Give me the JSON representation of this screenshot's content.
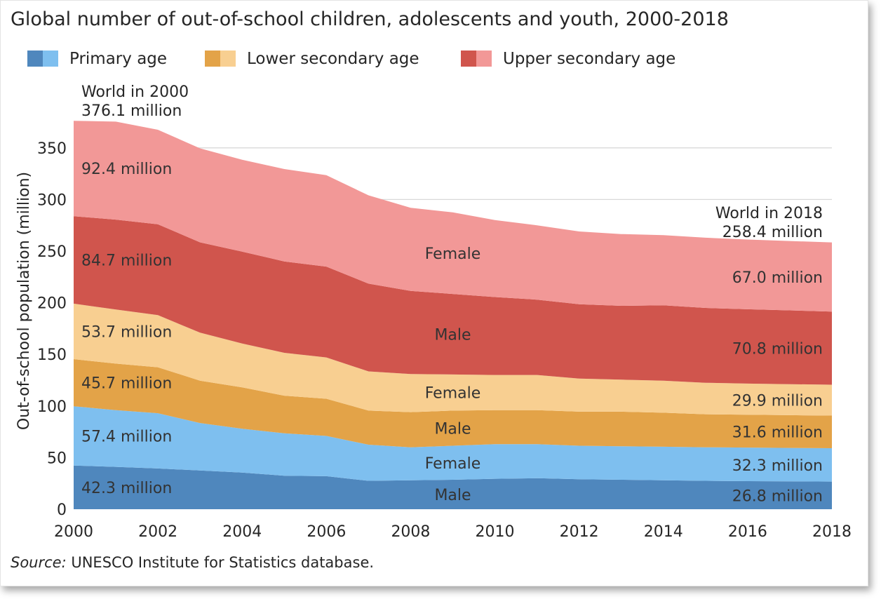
{
  "chart_data": {
    "type": "area",
    "title": "Global number of out-of-school children, adolescents and youth, 2000-2018",
    "ylabel": "Out-of-school population (million)",
    "xlabel": "",
    "x": [
      2000,
      2001,
      2002,
      2003,
      2004,
      2005,
      2006,
      2007,
      2008,
      2009,
      2010,
      2011,
      2012,
      2013,
      2014,
      2015,
      2016,
      2017,
      2018
    ],
    "ylim": [
      0,
      376
    ],
    "xlim": [
      2000,
      2018
    ],
    "y_ticks": [
      "0",
      "50",
      "100",
      "150",
      "200",
      "250",
      "300",
      "350"
    ],
    "x_ticks": [
      "2000",
      "2002",
      "2004",
      "2006",
      "2008",
      "2010",
      "2012",
      "2014",
      "2016",
      "2018"
    ],
    "grid": true,
    "stacked": true,
    "legend": [
      {
        "label": "Primary age",
        "colors": [
          "#4f87bd",
          "#7ebfef"
        ]
      },
      {
        "label": "Lower secondary age",
        "colors": [
          "#e3a348",
          "#f8cf91"
        ]
      },
      {
        "label": "Upper secondary age",
        "colors": [
          "#d0554d",
          "#f29897"
        ]
      }
    ],
    "series": [
      {
        "color": "#4f87bd",
        "label_2000": "42.3 million",
        "label_mid": "Male",
        "label_2018": "26.8 million",
        "values": [
          42.3,
          41,
          39.5,
          37.5,
          35.5,
          32.5,
          32,
          27.5,
          28,
          28.5,
          29.5,
          30,
          29,
          28.5,
          28,
          27.5,
          27.2,
          27,
          26.8
        ]
      },
      {
        "color": "#7ebfef",
        "label_2000": "57.4 million",
        "label_mid": "Female",
        "label_2018": "32.3 million",
        "values": [
          57.4,
          55,
          53.5,
          46,
          42.5,
          41,
          39,
          35,
          32,
          33,
          33.5,
          33,
          32.5,
          32.5,
          32.5,
          32.5,
          32.5,
          32.4,
          32.3
        ]
      },
      {
        "color": "#e3a348",
        "label_2000": "45.7 million",
        "label_mid": "Male",
        "label_2018": "31.6 million",
        "values": [
          45.7,
          45,
          44.5,
          41,
          40,
          36.5,
          36,
          33,
          34,
          34,
          33,
          33,
          33,
          33.5,
          33,
          32,
          31.8,
          31.7,
          31.6
        ]
      },
      {
        "color": "#f8cf91",
        "label_2000": "53.7 million",
        "label_mid": "Female",
        "label_2018": "29.9 million",
        "values": [
          53.7,
          52.5,
          50.5,
          46.5,
          42.5,
          41.5,
          40,
          38,
          37,
          35,
          34,
          34,
          32,
          31,
          31,
          30.5,
          30.2,
          30,
          29.9
        ]
      },
      {
        "color": "#d0554d",
        "label_2000": "84.7 million",
        "label_mid": "Male",
        "label_2018": "70.8 million",
        "values": [
          84.7,
          87,
          88,
          87.5,
          89,
          88.5,
          88,
          85,
          80.5,
          78,
          75.5,
          73,
          72,
          71.5,
          73,
          72.5,
          72,
          71.5,
          70.8
        ]
      },
      {
        "color": "#f29897",
        "label_2000": "92.4 million",
        "label_mid": "Female",
        "label_2018": "67.0 million",
        "values": [
          92.4,
          94.9,
          91.5,
          91,
          89,
          89.5,
          88.5,
          85.5,
          80.5,
          79,
          74.5,
          72,
          70.5,
          69.5,
          68,
          68,
          67.5,
          67.2,
          67.0
        ]
      }
    ],
    "annotations": {
      "start_line1": "World in 2000",
      "start_line2": "376.1 million",
      "end_line1": "World in 2018",
      "end_line2": "258.4 million"
    },
    "source_italic": "Source:",
    "source_text": " UNESCO Institute for Statistics database."
  }
}
